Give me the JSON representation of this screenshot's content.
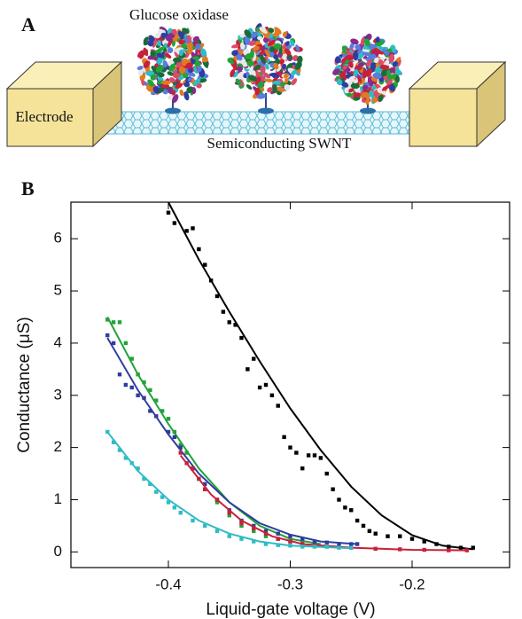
{
  "panel_a": {
    "label": "A",
    "enzyme_label": "Glucose oxidase",
    "electrode_label": "Electrode",
    "tube_label": "Semiconducting SWNT"
  },
  "chart_data": {
    "type": "scatter",
    "panel_label": "B",
    "x_label": "Liquid-gate voltage (V)",
    "y_label": "Conductance (μS)",
    "xlim": [
      -0.48,
      -0.12
    ],
    "ylim": [
      -0.3,
      6.7
    ],
    "xticks": [
      -0.4,
      -0.3,
      -0.2
    ],
    "yticks": [
      0,
      1,
      2,
      3,
      4,
      5,
      6
    ],
    "series": [
      {
        "color": "#000000",
        "x": [
          -0.4,
          -0.395,
          -0.385,
          -0.38,
          -0.375,
          -0.37,
          -0.365,
          -0.36,
          -0.355,
          -0.35,
          -0.345,
          -0.34,
          -0.335,
          -0.33,
          -0.325,
          -0.32,
          -0.315,
          -0.31,
          -0.305,
          -0.3,
          -0.295,
          -0.29,
          -0.285,
          -0.28,
          -0.275,
          -0.27,
          -0.265,
          -0.26,
          -0.255,
          -0.25,
          -0.245,
          -0.24,
          -0.235,
          -0.23,
          -0.22,
          -0.21,
          -0.2,
          -0.19,
          -0.18,
          -0.17,
          -0.16,
          -0.15
        ],
        "values": [
          6.5,
          6.3,
          6.15,
          6.2,
          5.8,
          5.5,
          5.2,
          4.9,
          4.6,
          4.4,
          4.35,
          4.1,
          3.5,
          3.7,
          3.15,
          3.2,
          3.0,
          2.8,
          2.2,
          2.0,
          1.9,
          1.6,
          1.85,
          1.85,
          1.8,
          1.5,
          1.2,
          1.0,
          0.85,
          0.8,
          0.6,
          0.5,
          0.4,
          0.35,
          0.3,
          0.3,
          0.25,
          0.2,
          0.15,
          0.1,
          0.08,
          0.08
        ],
        "fit_x": [
          -0.4,
          -0.375,
          -0.35,
          -0.325,
          -0.3,
          -0.275,
          -0.25,
          -0.225,
          -0.2,
          -0.175,
          -0.15
        ],
        "fit_values": [
          6.7,
          5.6,
          4.6,
          3.65,
          2.75,
          1.95,
          1.25,
          0.7,
          0.32,
          0.12,
          0.05
        ]
      },
      {
        "color": "#22a33a",
        "x": [
          -0.45,
          -0.445,
          -0.44,
          -0.435,
          -0.43,
          -0.425,
          -0.42,
          -0.415,
          -0.41,
          -0.405,
          -0.4,
          -0.395,
          -0.39,
          -0.385,
          -0.38,
          -0.375,
          -0.37,
          -0.36,
          -0.35,
          -0.34,
          -0.33,
          -0.32,
          -0.31,
          -0.3,
          -0.29,
          -0.28
        ],
        "values": [
          4.45,
          4.4,
          4.4,
          4.0,
          3.7,
          3.4,
          3.25,
          3.1,
          2.9,
          2.7,
          2.55,
          2.3,
          2.05,
          1.9,
          1.6,
          1.4,
          1.2,
          0.95,
          0.7,
          0.5,
          0.4,
          0.3,
          0.25,
          0.2,
          0.18,
          0.15
        ],
        "fit_x": [
          -0.45,
          -0.425,
          -0.4,
          -0.375,
          -0.35,
          -0.325,
          -0.3,
          -0.275
        ],
        "fit_values": [
          4.5,
          3.4,
          2.45,
          1.6,
          0.95,
          0.5,
          0.25,
          0.15
        ]
      },
      {
        "color": "#2e3d9e",
        "x": [
          -0.45,
          -0.445,
          -0.44,
          -0.435,
          -0.43,
          -0.425,
          -0.42,
          -0.415,
          -0.41,
          -0.4,
          -0.395,
          -0.39,
          -0.38,
          -0.37,
          -0.36,
          -0.35,
          -0.34,
          -0.33,
          -0.32,
          -0.31,
          -0.3,
          -0.29,
          -0.28,
          -0.27,
          -0.26,
          -0.25,
          -0.245
        ],
        "values": [
          4.15,
          4.0,
          3.4,
          3.2,
          3.15,
          3.0,
          2.95,
          2.7,
          2.6,
          2.3,
          2.2,
          2.0,
          1.6,
          1.3,
          1.0,
          0.8,
          0.6,
          0.5,
          0.4,
          0.35,
          0.3,
          0.25,
          0.2,
          0.18,
          0.15,
          0.15,
          0.15
        ],
        "fit_x": [
          -0.45,
          -0.425,
          -0.4,
          -0.375,
          -0.35,
          -0.325,
          -0.3,
          -0.275,
          -0.245
        ],
        "fit_values": [
          4.1,
          3.1,
          2.25,
          1.5,
          0.95,
          0.55,
          0.33,
          0.2,
          0.15
        ]
      },
      {
        "color": "#c8203a",
        "x": [
          -0.39,
          -0.385,
          -0.38,
          -0.375,
          -0.37,
          -0.36,
          -0.35,
          -0.34,
          -0.33,
          -0.32,
          -0.31,
          -0.3,
          -0.29,
          -0.28,
          -0.27,
          -0.25,
          -0.23,
          -0.21,
          -0.19,
          -0.17,
          -0.155
        ],
        "values": [
          1.9,
          1.7,
          1.6,
          1.4,
          1.2,
          1.0,
          0.75,
          0.55,
          0.45,
          0.35,
          0.25,
          0.2,
          0.15,
          0.12,
          0.1,
          0.08,
          0.06,
          0.05,
          0.04,
          0.03,
          0.03
        ],
        "fit_x": [
          -0.39,
          -0.365,
          -0.34,
          -0.315,
          -0.29,
          -0.25,
          -0.2,
          -0.155
        ],
        "fit_values": [
          1.85,
          1.1,
          0.6,
          0.3,
          0.15,
          0.08,
          0.04,
          0.03
        ]
      },
      {
        "color": "#2fbcc4",
        "x": [
          -0.45,
          -0.445,
          -0.44,
          -0.435,
          -0.43,
          -0.425,
          -0.42,
          -0.415,
          -0.41,
          -0.405,
          -0.4,
          -0.395,
          -0.39,
          -0.38,
          -0.37,
          -0.36,
          -0.35,
          -0.34,
          -0.33,
          -0.32,
          -0.31,
          -0.3,
          -0.29,
          -0.28,
          -0.27,
          -0.26,
          -0.25
        ],
        "values": [
          2.3,
          2.1,
          1.95,
          1.8,
          1.7,
          1.6,
          1.4,
          1.3,
          1.15,
          1.05,
          0.95,
          0.85,
          0.75,
          0.6,
          0.5,
          0.4,
          0.3,
          0.25,
          0.2,
          0.15,
          0.13,
          0.12,
          0.1,
          0.1,
          0.1,
          0.08,
          0.08
        ],
        "fit_x": [
          -0.45,
          -0.425,
          -0.4,
          -0.375,
          -0.35,
          -0.325,
          -0.3,
          -0.25
        ],
        "fit_values": [
          2.3,
          1.55,
          1.0,
          0.6,
          0.35,
          0.2,
          0.12,
          0.07
        ]
      }
    ]
  }
}
